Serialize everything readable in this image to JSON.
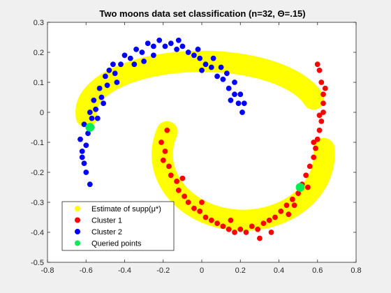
{
  "chart_data": {
    "type": "scatter",
    "title": "Two moons data set classification (n=32, Θ=.15)",
    "xlabel": "",
    "ylabel": "",
    "xlim": [
      -0.8,
      0.8
    ],
    "ylim": [
      -0.5,
      0.3
    ],
    "x_ticks": [
      "-0.8",
      "-0.6",
      "-0.4",
      "-0.2",
      "0",
      "0.2",
      "0.4",
      "0.6",
      "0.8"
    ],
    "y_ticks": [
      "0.3",
      "0.2",
      "0.1",
      "0",
      "-0.1",
      "-0.2",
      "-0.3",
      "-0.4",
      "-0.5"
    ],
    "grid": false,
    "legend_position": "bottom-left",
    "legend": [
      {
        "label": "Estimate of supp(μ*)",
        "color": "#ffff00"
      },
      {
        "label": "Cluster 1",
        "color": "#ff0000"
      },
      {
        "label": "Cluster 2",
        "color": "#0000ff"
      },
      {
        "label": "Queried points",
        "color": "#00ee55"
      }
    ],
    "support": {
      "name": "Estimate of supp(μ*)",
      "color": "#ffff00",
      "upper_band": {
        "center_x": 0.0,
        "center_y": 0.0,
        "radius_x": 0.6,
        "radius_y": 0.17,
        "angle_start_deg": 185,
        "angle_end_deg": 15,
        "half_width": 0.055
      },
      "lower_band": {
        "center_x": 0.215,
        "center_y": -0.14,
        "radius_x": 0.42,
        "radius_y": 0.22,
        "angle_start_deg": 160,
        "angle_end_deg": 365,
        "half_width": 0.055
      }
    },
    "series": [
      {
        "name": "Cluster 2",
        "color": "#0000ff",
        "points": [
          [
            -0.6,
            -0.2
          ],
          [
            -0.61,
            -0.17
          ],
          [
            -0.62,
            -0.13
          ],
          [
            -0.6,
            -0.11
          ],
          [
            -0.63,
            -0.09
          ],
          [
            -0.59,
            -0.07
          ],
          [
            -0.61,
            -0.04
          ],
          [
            -0.57,
            -0.02
          ],
          [
            -0.58,
            0.0
          ],
          [
            -0.55,
            0.01
          ],
          [
            -0.56,
            0.04
          ],
          [
            -0.52,
            0.05
          ],
          [
            -0.53,
            0.08
          ],
          [
            -0.49,
            0.09
          ],
          [
            -0.5,
            0.12
          ],
          [
            -0.45,
            0.13
          ],
          [
            -0.46,
            0.16
          ],
          [
            -0.42,
            0.16
          ],
          [
            -0.4,
            0.19
          ],
          [
            -0.37,
            0.18
          ],
          [
            -0.34,
            0.21
          ],
          [
            -0.31,
            0.2
          ],
          [
            -0.28,
            0.23
          ],
          [
            -0.25,
            0.22
          ],
          [
            -0.22,
            0.24
          ],
          [
            -0.19,
            0.22
          ],
          [
            -0.16,
            0.23
          ],
          [
            -0.13,
            0.21
          ],
          [
            -0.1,
            0.22
          ],
          [
            -0.07,
            0.2
          ],
          [
            -0.04,
            0.19
          ],
          [
            -0.01,
            0.18
          ],
          [
            0.02,
            0.16
          ],
          [
            0.05,
            0.15
          ],
          [
            0.08,
            0.12
          ],
          [
            0.11,
            0.11
          ],
          [
            0.14,
            0.08
          ],
          [
            0.17,
            0.06
          ],
          [
            0.19,
            0.03
          ],
          [
            0.21,
            0.0
          ],
          [
            0.2,
            0.06
          ],
          [
            0.17,
            0.1
          ],
          [
            0.13,
            0.13
          ],
          [
            0.1,
            0.15
          ],
          [
            0.06,
            0.18
          ],
          [
            -0.02,
            0.21
          ],
          [
            -0.12,
            0.24
          ],
          [
            -0.25,
            0.19
          ],
          [
            -0.35,
            0.16
          ],
          [
            -0.44,
            0.1
          ],
          [
            -0.51,
            0.03
          ],
          [
            -0.57,
            -0.05
          ],
          [
            -0.62,
            -0.15
          ],
          [
            -0.58,
            -0.24
          ],
          [
            -0.48,
            0.14
          ],
          [
            -0.3,
            0.17
          ],
          [
            0.0,
            0.14
          ],
          [
            0.15,
            0.04
          ],
          [
            0.22,
            0.03
          ],
          [
            -0.54,
            -0.02
          ]
        ]
      },
      {
        "name": "Cluster 1",
        "color": "#ff0000",
        "points": [
          [
            -0.21,
            -0.1
          ],
          [
            -0.19,
            -0.13
          ],
          [
            -0.2,
            -0.16
          ],
          [
            -0.17,
            -0.18
          ],
          [
            -0.16,
            -0.21
          ],
          [
            -0.13,
            -0.23
          ],
          [
            -0.12,
            -0.26
          ],
          [
            -0.09,
            -0.28
          ],
          [
            -0.07,
            -0.3
          ],
          [
            -0.04,
            -0.32
          ],
          [
            -0.01,
            -0.33
          ],
          [
            0.02,
            -0.35
          ],
          [
            0.05,
            -0.36
          ],
          [
            0.08,
            -0.37
          ],
          [
            0.11,
            -0.38
          ],
          [
            0.14,
            -0.39
          ],
          [
            0.17,
            -0.4
          ],
          [
            0.2,
            -0.39
          ],
          [
            0.23,
            -0.4
          ],
          [
            0.26,
            -0.38
          ],
          [
            0.29,
            -0.39
          ],
          [
            0.32,
            -0.37
          ],
          [
            0.35,
            -0.36
          ],
          [
            0.38,
            -0.35
          ],
          [
            0.41,
            -0.33
          ],
          [
            0.44,
            -0.31
          ],
          [
            0.47,
            -0.29
          ],
          [
            0.5,
            -0.27
          ],
          [
            0.52,
            -0.24
          ],
          [
            0.54,
            -0.21
          ],
          [
            0.56,
            -0.18
          ],
          [
            0.58,
            -0.15
          ],
          [
            0.59,
            -0.12
          ],
          [
            0.6,
            -0.09
          ],
          [
            0.61,
            -0.06
          ],
          [
            0.62,
            -0.03
          ],
          [
            0.63,
            0.0
          ],
          [
            0.63,
            0.03
          ],
          [
            0.63,
            0.06
          ],
          [
            0.62,
            0.1
          ],
          [
            0.61,
            0.14
          ],
          [
            0.6,
            0.16
          ],
          [
            0.64,
            0.08
          ],
          [
            0.58,
            -0.1
          ],
          [
            0.55,
            -0.25
          ],
          [
            0.45,
            -0.34
          ],
          [
            0.3,
            -0.42
          ],
          [
            0.15,
            -0.36
          ],
          [
            0.0,
            -0.3
          ],
          [
            -0.1,
            -0.22
          ],
          [
            -0.18,
            -0.06
          ],
          [
            0.36,
            -0.4
          ],
          [
            0.48,
            -0.31
          ],
          [
            0.61,
            -0.01
          ]
        ]
      },
      {
        "name": "Queried points",
        "color": "#00ee55",
        "points": [
          [
            -0.58,
            -0.05
          ],
          [
            0.51,
            -0.25
          ]
        ]
      }
    ]
  }
}
